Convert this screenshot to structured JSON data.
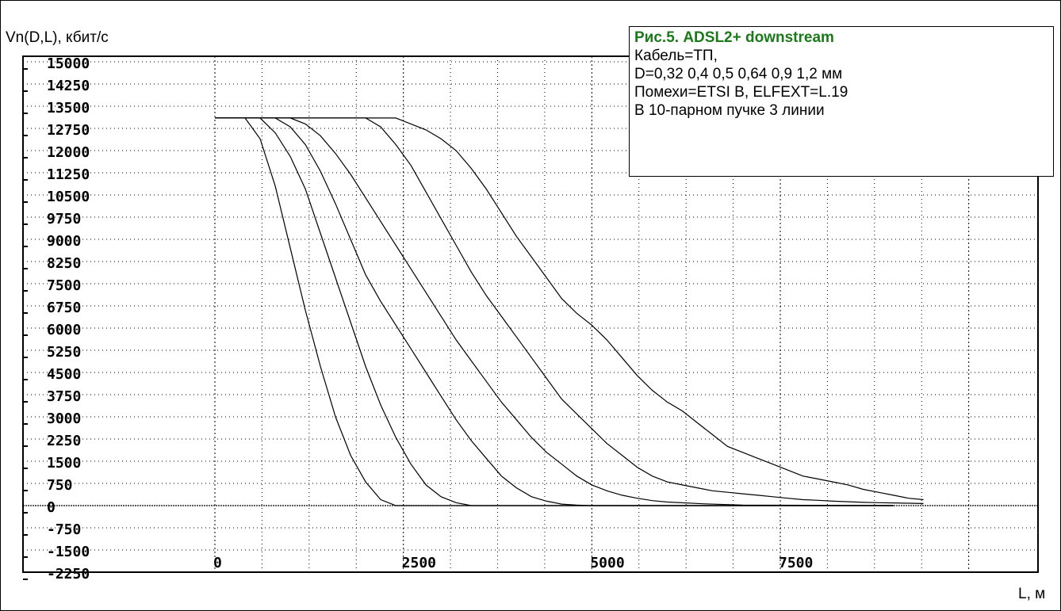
{
  "chart_data": {
    "type": "line",
    "title": "Рис.5.  ADSL2+ downstream",
    "annotations": [
      "Кабель=ТП,",
      "D=0,32   0,4   0,5   0,64   0,9   1,2 мм",
      "Помехи=ETSI B,   ELFEXT=L.19",
      "В 10-парном пучке 3 линии"
    ],
    "ylabel": "Vn(D,L), кбит/с",
    "xlabel": "L, м",
    "xlim": [
      -2500,
      10400
    ],
    "ylim": [
      -2250,
      15000
    ],
    "yticks": [
      15000,
      14250,
      13500,
      12750,
      12000,
      11250,
      10500,
      9750,
      9000,
      8250,
      7500,
      6750,
      6000,
      5250,
      4500,
      3750,
      3000,
      2250,
      1500,
      750,
      0,
      -750,
      -1500,
      -2250
    ],
    "xticks": [
      0,
      2500,
      5000,
      7500
    ],
    "grid": true,
    "series": [
      {
        "values_x": [
          0,
          400,
          600,
          800,
          1000,
          1200,
          1400,
          1600,
          1800,
          2000,
          2200,
          2400,
          2600,
          9000
        ],
        "values_y": [
          13100,
          13100,
          12400,
          10800,
          8700,
          6600,
          4700,
          3000,
          1700,
          800,
          200,
          0,
          0,
          0
        ]
      },
      {
        "values_x": [
          0,
          600,
          800,
          1000,
          1200,
          1400,
          1600,
          1800,
          2000,
          2200,
          2400,
          2600,
          2800,
          3000,
          3200,
          3400,
          9000
        ],
        "values_y": [
          13100,
          13100,
          12600,
          11800,
          10700,
          9200,
          7700,
          6200,
          4700,
          3400,
          2300,
          1400,
          700,
          300,
          100,
          0,
          0
        ]
      },
      {
        "values_x": [
          0,
          800,
          1000,
          1200,
          1400,
          1600,
          1800,
          2000,
          2200,
          2400,
          2600,
          2800,
          3000,
          3200,
          3400,
          3600,
          3800,
          4000,
          4200,
          4400,
          4600,
          4800,
          5000,
          9000
        ],
        "values_y": [
          13100,
          13100,
          12800,
          12200,
          11300,
          10200,
          9000,
          7800,
          6900,
          6100,
          5300,
          4500,
          3700,
          2900,
          2200,
          1600,
          1000,
          600,
          300,
          150,
          50,
          20,
          0,
          0
        ]
      },
      {
        "values_x": [
          0,
          1000,
          1200,
          1400,
          1600,
          1800,
          2000,
          2200,
          2400,
          2600,
          2800,
          3000,
          3200,
          3400,
          3600,
          3800,
          4000,
          4200,
          4400,
          4600,
          4800,
          5000,
          5200,
          5400,
          5600,
          5800,
          6000,
          6500,
          7000,
          9000
        ],
        "values_y": [
          13100,
          13100,
          12900,
          12500,
          11900,
          11200,
          10400,
          9600,
          8800,
          8000,
          7200,
          6400,
          5600,
          4900,
          4200,
          3500,
          2900,
          2300,
          1800,
          1400,
          1000,
          700,
          500,
          350,
          250,
          170,
          120,
          60,
          20,
          0
        ]
      },
      {
        "values_x": [
          0,
          2000,
          2200,
          2400,
          2600,
          2800,
          3000,
          3200,
          3400,
          3600,
          3800,
          4000,
          4200,
          4400,
          4600,
          4800,
          5000,
          5200,
          5400,
          5600,
          5800,
          6000,
          6200,
          6400,
          6600,
          6800,
          7000,
          7200,
          7400,
          7600,
          7800,
          8000,
          8200,
          8400,
          8600,
          8800,
          9000,
          9200,
          9400
        ],
        "values_y": [
          13100,
          13100,
          12800,
          12200,
          11500,
          10600,
          9700,
          8800,
          7900,
          7100,
          6400,
          5700,
          5000,
          4300,
          3600,
          3100,
          2600,
          2100,
          1700,
          1300,
          1000,
          800,
          700,
          600,
          500,
          450,
          400,
          350,
          300,
          250,
          200,
          180,
          150,
          130,
          110,
          100,
          90,
          80,
          70
        ]
      },
      {
        "values_x": [
          0,
          2400,
          2600,
          2800,
          3000,
          3200,
          3400,
          3600,
          3800,
          4000,
          4200,
          4400,
          4600,
          4800,
          5000,
          5200,
          5400,
          5600,
          5800,
          6000,
          6200,
          6400,
          6600,
          6800,
          7000,
          7200,
          7400,
          7600,
          7800,
          8000,
          8200,
          8400,
          8600,
          8800,
          9000,
          9200,
          9400
        ],
        "values_y": [
          13100,
          13100,
          12900,
          12700,
          12400,
          12000,
          11400,
          10700,
          9900,
          9100,
          8400,
          7700,
          7000,
          6500,
          6100,
          5600,
          5000,
          4400,
          3900,
          3500,
          3200,
          2800,
          2400,
          2000,
          1800,
          1600,
          1400,
          1200,
          1000,
          900,
          800,
          700,
          550,
          450,
          350,
          250,
          200
        ]
      }
    ]
  }
}
